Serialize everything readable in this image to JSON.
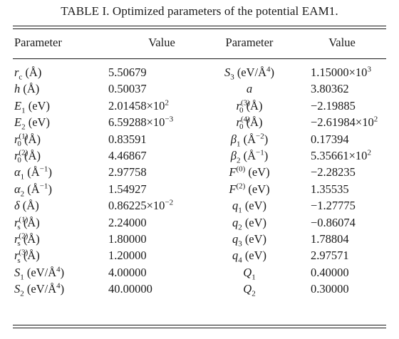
{
  "caption": "TABLE I. Optimized parameters of the potential EAM1.",
  "headers": [
    "Parameter",
    "Value",
    "Parameter",
    "Value"
  ],
  "rows": [
    {
      "p1": "r_c (Å)",
      "v1": "5.50679",
      "p2": "S_3 (eV/Å^4)",
      "v2": "1.15000×10^3"
    },
    {
      "p1": "h (Å)",
      "v1": "0.50037",
      "p2": "a",
      "v2": "3.80362"
    },
    {
      "p1": "E_1 (eV)",
      "v1": "2.01458×10^2",
      "p2": "r_0^(3) (Å)",
      "v2": "−2.19885"
    },
    {
      "p1": "E_2 (eV)",
      "v1": "6.59288×10^−3",
      "p2": "r_0^(4) (Å)",
      "v2": "−2.61984×10^2"
    },
    {
      "p1": "r_0^(1) (Å)",
      "v1": "0.83591",
      "p2": "β_1 (Å^−2)",
      "v2": "0.17394"
    },
    {
      "p1": "r_0^(2) (Å)",
      "v1": "4.46867",
      "p2": "β_2 (Å^−1)",
      "v2": "5.35661×10^2"
    },
    {
      "p1": "α_1 (Å^−1)",
      "v1": "2.97758",
      "p2": "F^(0) (eV)",
      "v2": "−2.28235"
    },
    {
      "p1": "α_2 (Å^−1)",
      "v1": "1.54927",
      "p2": "F^(2) (eV)",
      "v2": "1.35535"
    },
    {
      "p1": "δ (Å)",
      "v1": "0.86225×10^−2",
      "p2": "q_1 (eV)",
      "v2": "−1.27775"
    },
    {
      "p1": "r_s^(1) (Å)",
      "v1": "2.24000",
      "p2": "q_2 (eV)",
      "v2": "−0.86074"
    },
    {
      "p1": "r_s^(2) (Å)",
      "v1": "1.80000",
      "p2": "q_3 (eV)",
      "v2": "1.78804"
    },
    {
      "p1": "r_s^(3) (Å)",
      "v1": "1.20000",
      "p2": "q_4 (eV)",
      "v2": "2.97571"
    },
    {
      "p1": "S_1 (eV/Å^4)",
      "v1": "4.00000",
      "p2": "Q_1",
      "v2": "0.40000"
    },
    {
      "p1": "S_2 (eV/Å^4)",
      "v1": "40.00000",
      "p2": "Q_2",
      "v2": "0.30000"
    }
  ]
}
